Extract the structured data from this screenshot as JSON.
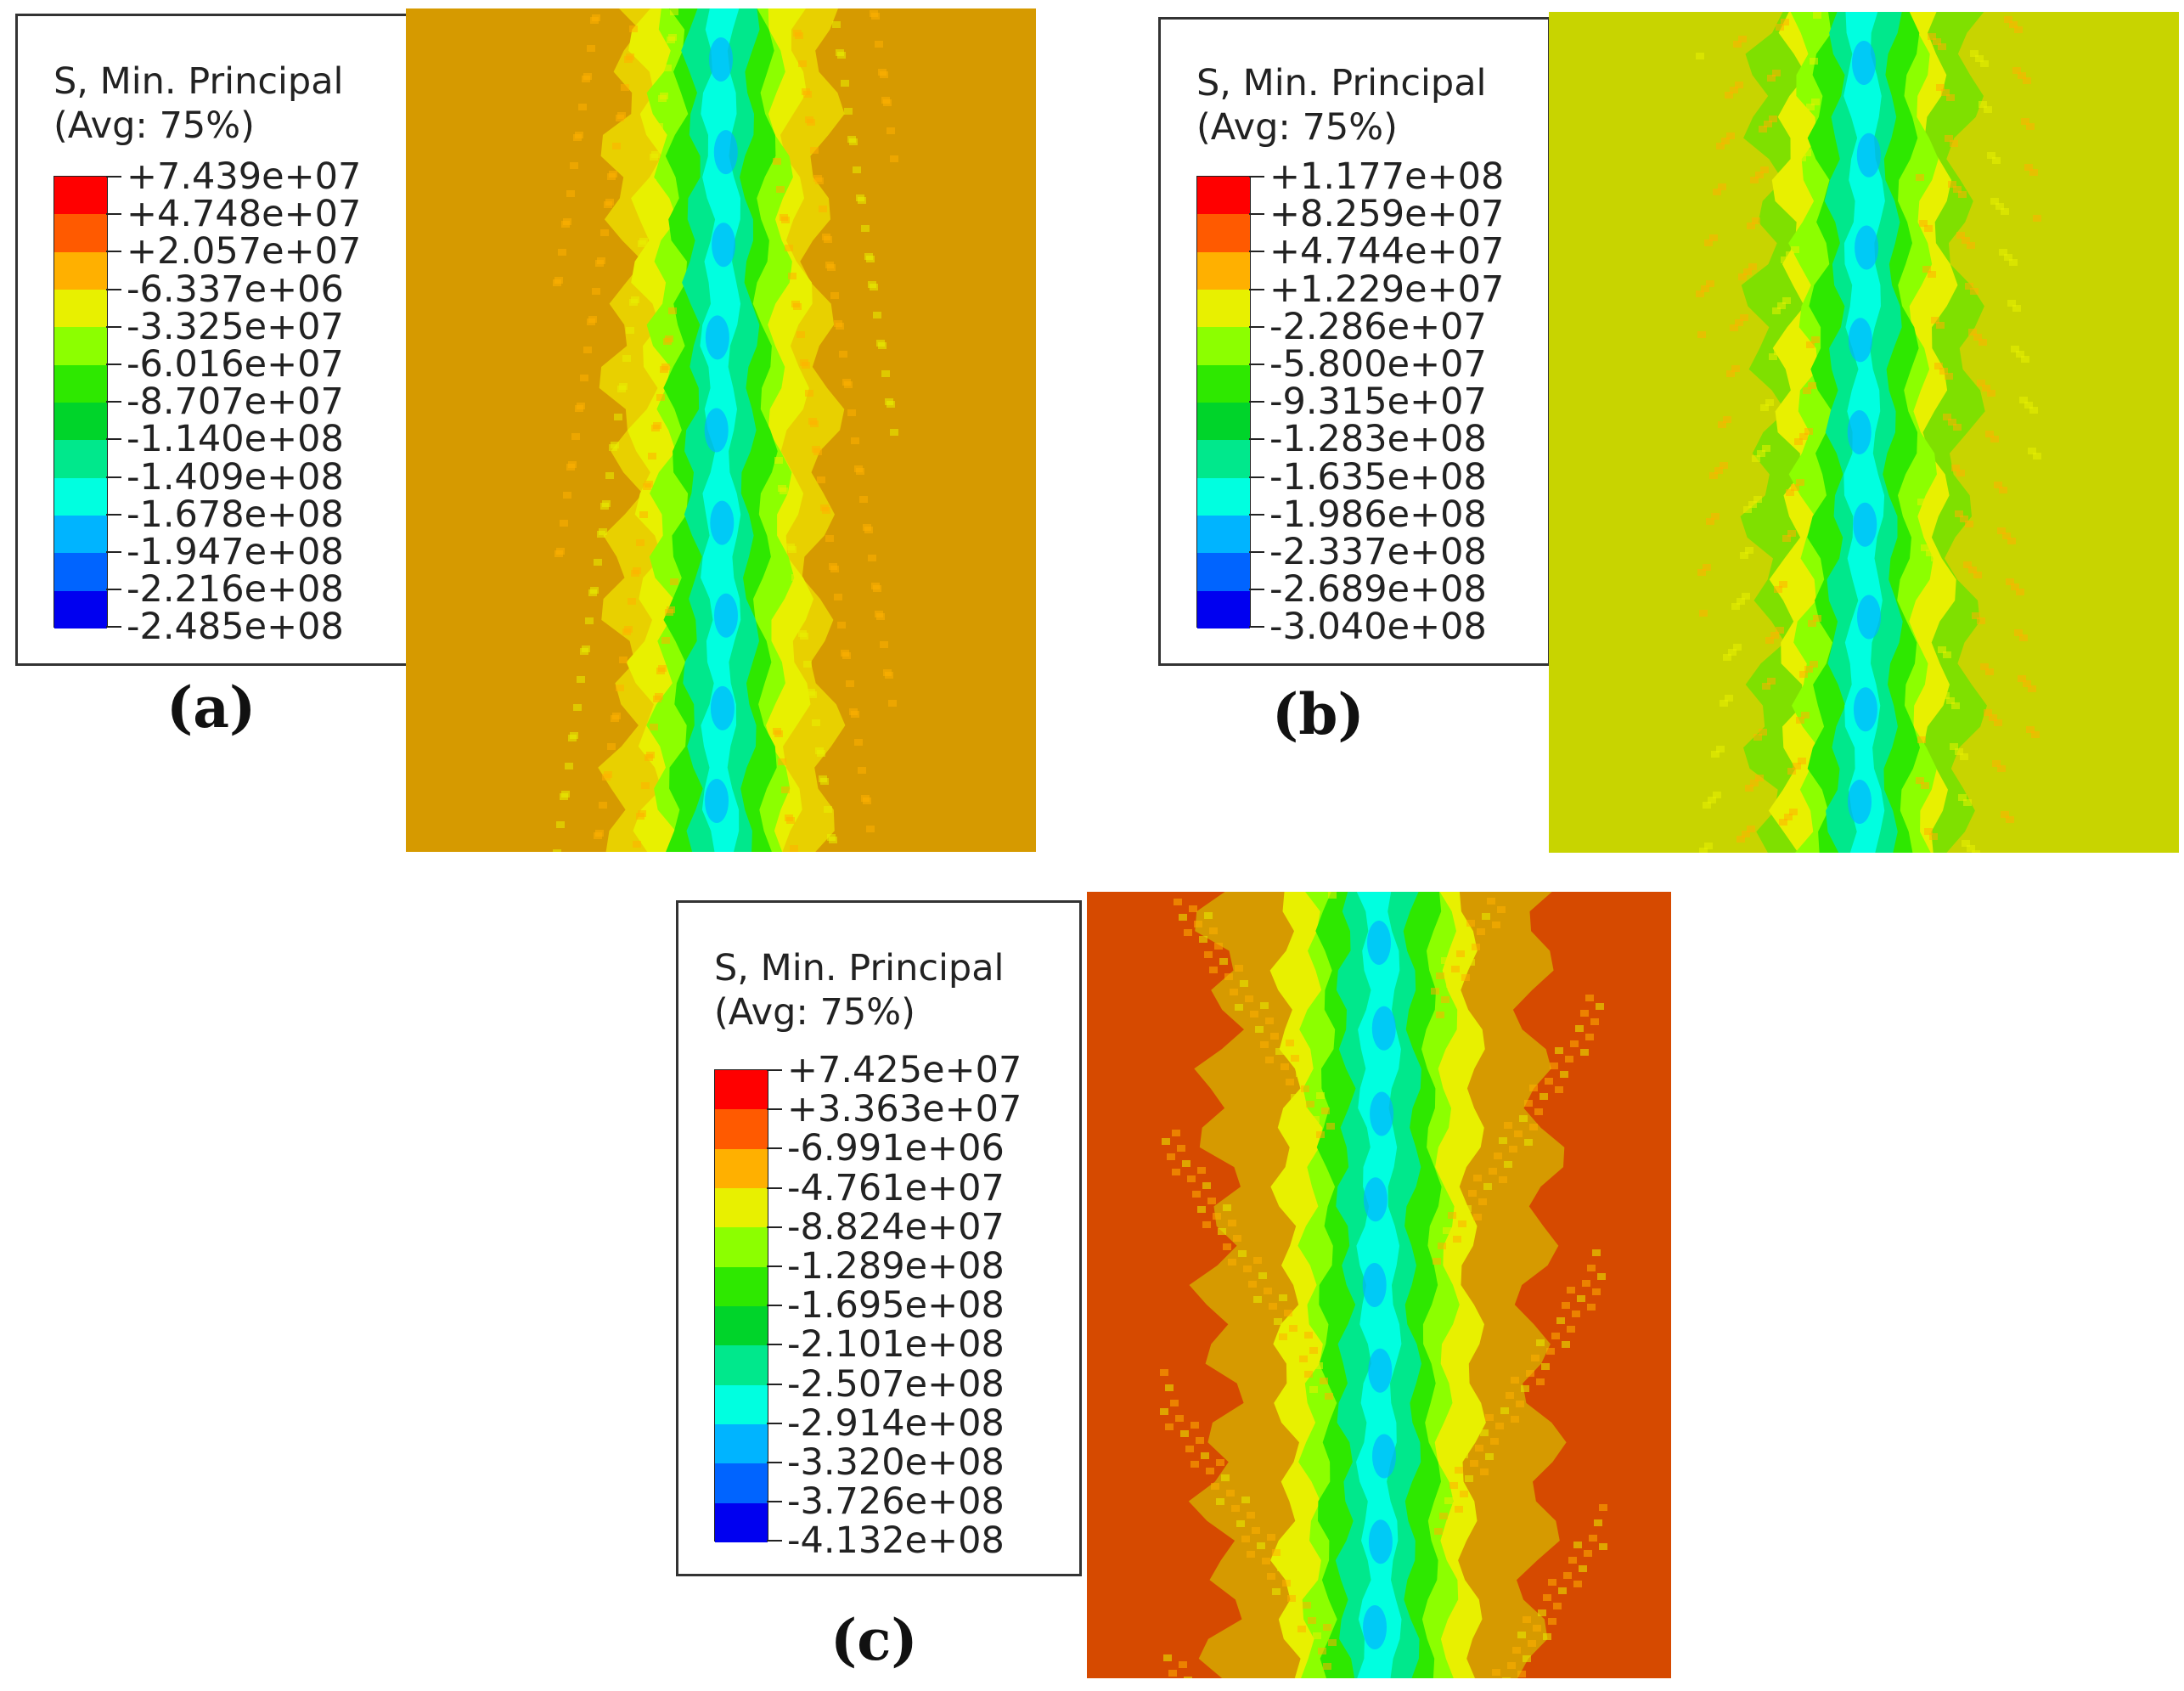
{
  "panels": [
    {
      "id": "a",
      "label": "(a)",
      "legend_title_line1": "S, Min. Principal",
      "legend_title_line2": "(Avg: 75%)",
      "ticks": [
        "+7.439e+07",
        "+4.748e+07",
        "+2.057e+07",
        "-6.337e+06",
        "-3.325e+07",
        "-6.016e+07",
        "-8.707e+07",
        "-1.140e+08",
        "-1.409e+08",
        "-1.678e+08",
        "-1.947e+08",
        "-2.216e+08",
        "-2.485e+08"
      ],
      "background_color": "#D69A00",
      "band_color": "#C8D400"
    },
    {
      "id": "b",
      "label": "(b)",
      "legend_title_line1": "S, Min. Principal",
      "legend_title_line2": "(Avg: 75%)",
      "ticks": [
        "+1.177e+08",
        "+8.259e+07",
        "+4.744e+07",
        "+1.229e+07",
        "-2.286e+07",
        "-5.800e+07",
        "-9.315e+07",
        "-1.283e+08",
        "-1.635e+08",
        "-1.986e+08",
        "-2.337e+08",
        "-2.689e+08",
        "-3.040e+08"
      ],
      "background_color": "#C8D400",
      "band_color": "#7FE000"
    },
    {
      "id": "c",
      "label": "(c)",
      "legend_title_line1": "S, Min. Principal",
      "legend_title_line2": "(Avg: 75%)",
      "ticks": [
        "+7.425e+07",
        "+3.363e+07",
        "-6.991e+06",
        "-4.761e+07",
        "-8.824e+07",
        "-1.289e+08",
        "-1.695e+08",
        "-2.101e+08",
        "-2.507e+08",
        "-2.914e+08",
        "-3.320e+08",
        "-3.726e+08",
        "-4.132e+08"
      ],
      "background_color": "#D64A00",
      "band_color": "#D69A00"
    }
  ],
  "colorbar_colors": [
    "#FF0000",
    "#FF5A00",
    "#FFB000",
    "#E8F000",
    "#8CFF00",
    "#2EE800",
    "#00D42A",
    "#00E88C",
    "#00FFE0",
    "#00B4FF",
    "#0064FF",
    "#0000F0"
  ]
}
